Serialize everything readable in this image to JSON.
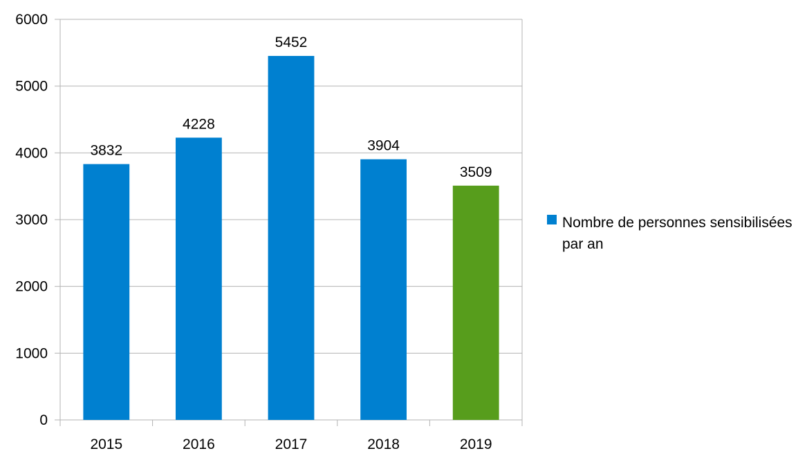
{
  "chart_data": {
    "type": "bar",
    "categories": [
      "2015",
      "2016",
      "2017",
      "2018",
      "2019"
    ],
    "series": [
      {
        "name": "Nombre de personnes sensibi­lisées par an",
        "color": "#0080d0",
        "colors": [
          "#0080d0",
          "#0080d0",
          "#0080d0",
          "#0080d0",
          "#579d1c"
        ],
        "values": [
          3832,
          4228,
          5452,
          3904,
          3509
        ]
      }
    ],
    "ylim": [
      0,
      6000
    ],
    "yticks": [
      0,
      1000,
      2000,
      3000,
      4000,
      5000,
      6000
    ],
    "grid": true,
    "legend": "right"
  }
}
